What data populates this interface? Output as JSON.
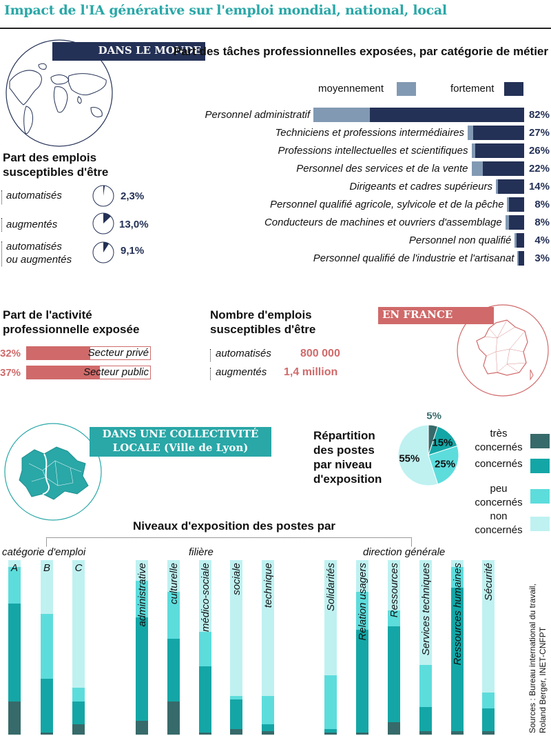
{
  "title": "Impact de l'IA générative sur l'emploi mondial, national, local",
  "world": {
    "banner": "DANS LE MONDE",
    "jobs_title_1": "Part des emplois",
    "jobs_title_2": "susceptibles d'être",
    "jobs": [
      {
        "label_1": "automatisés",
        "label_2": "",
        "value": 2.3,
        "text": "2,3%"
      },
      {
        "label_1": "augmentés",
        "label_2": "",
        "value": 13.0,
        "text": "13,0%"
      },
      {
        "label_1": "automatisés",
        "label_2": "ou augmentés",
        "value": 9.1,
        "text": "9,1%"
      }
    ]
  },
  "france": {
    "banner": "EN FRANCE",
    "activity_title_1": "Part de l'activité",
    "activity_title_2": "professionnelle exposée",
    "activity": [
      {
        "label": "Secteur privé",
        "value": 32,
        "text": "32%"
      },
      {
        "label": "Secteur public",
        "value": 37,
        "text": "37%"
      }
    ],
    "jobs_title_1": "Nombre d'emplois",
    "jobs_title_2": "susceptibles d'être",
    "jobs": [
      {
        "label": "automatisés",
        "text": "800 000"
      },
      {
        "label": "augmentés",
        "text": "1,4 million"
      }
    ]
  },
  "local": {
    "banner_1": "DANS UNE COLLECTIVITÉ",
    "banner_2": "LOCALE (Ville de Lyon)",
    "pie_title": [
      "Répartition",
      "des postes",
      "par niveau",
      "d'exposition"
    ],
    "levels_title": "Niveaux d'exposition des postes par",
    "group_labels": [
      "catégorie d'emploi",
      "filière",
      "direction générale"
    ],
    "sources": [
      "Sources : Bureau international du travail,",
      "Roland Berger, INET-CNFPT"
    ]
  },
  "colors": {
    "navy": "#243156",
    "steel": "#8299b3",
    "red": "#d06a6a",
    "tres": "#376a6a",
    "concernes": "#14a6a6",
    "peu": "#5ddcdc",
    "non": "#bff1f1"
  },
  "chart_data": [
    {
      "type": "bar",
      "title": "Part des tâches professionnelles exposées, par catégorie de métier",
      "legend": [
        "moyennement",
        "fortement"
      ],
      "categories": [
        "Personnel administratif",
        "Techniciens et professions intermédiaires",
        "Professions intellectuelles et scientifiques",
        "Personnel des services et de la vente",
        "Dirigeants et cadres supérieurs",
        "Personnel qualifié agricole, sylvicole et de la pêche",
        "Conducteurs de machines et ouvriers d'assemblage",
        "Personnel non qualifié",
        "Personnel qualifié de l'industrie et l'artisanat"
      ],
      "series": [
        {
          "name": "moyennement",
          "values": [
            30,
            3,
            2,
            6,
            1,
            1,
            2,
            1,
            0.5
          ]
        },
        {
          "name": "fortement",
          "values": [
            82,
            27,
            26,
            22,
            14,
            8,
            8,
            4,
            3
          ]
        }
      ],
      "value_labels": [
        "82%",
        "27%",
        "26%",
        "22%",
        "14%",
        "8%",
        "8%",
        "4%",
        "3%"
      ]
    },
    {
      "type": "pie",
      "title": "Répartition des postes par niveau d'exposition",
      "labels": [
        "très concernés",
        "concernés",
        "peu concernés",
        "non concernés"
      ],
      "legend_labels": [
        [
          "très",
          "concernés"
        ],
        [
          "concernés"
        ],
        [
          "peu",
          "concernés"
        ],
        [
          "non",
          "concernés"
        ]
      ],
      "values": [
        5,
        15,
        25,
        55
      ],
      "value_labels": [
        "5%",
        "15%",
        "25%",
        "55%"
      ]
    },
    {
      "type": "bar",
      "stacked": true,
      "title": "Niveaux d'exposition des postes par",
      "series_names": [
        "très concernés",
        "concernés",
        "peu concernés",
        "non concernés"
      ],
      "groups": [
        {
          "name": "catégorie d'emploi",
          "bars": [
            {
              "label": "A",
              "values": [
                19,
                56,
                21,
                4
              ]
            },
            {
              "label": "B",
              "values": [
                1,
                31,
                37,
                31
              ]
            },
            {
              "label": "C",
              "values": [
                6,
                13,
                8,
                73
              ]
            }
          ]
        },
        {
          "name": "filière",
          "bars": [
            {
              "label": "administrative",
              "values": [
                8,
                59,
                21,
                12
              ]
            },
            {
              "label": "culturelle",
              "values": [
                19,
                36,
                27,
                18
              ]
            },
            {
              "label": "médico-sociale",
              "values": [
                1,
                38,
                20,
                41
              ]
            },
            {
              "label": "sociale",
              "values": [
                3,
                17,
                2,
                78
              ]
            },
            {
              "label": "technique",
              "values": [
                2,
                4,
                16,
                78
              ]
            }
          ]
        },
        {
          "name": "direction générale",
          "bars": [
            {
              "label": "Solidarités",
              "values": [
                1,
                2,
                31,
                66
              ]
            },
            {
              "label": "Relation usagers",
              "values": [
                1,
                59,
                22,
                18
              ]
            },
            {
              "label": "Ressources",
              "values": [
                7,
                55,
                9,
                29
              ]
            },
            {
              "label": "Services techniques",
              "values": [
                2,
                14,
                24,
                60
              ]
            },
            {
              "label": "Ressources humaines",
              "values": [
                2,
                82,
                12,
                4
              ]
            },
            {
              "label": "Sécurité",
              "values": [
                2,
                13,
                9,
                76
              ]
            }
          ]
        }
      ]
    }
  ]
}
